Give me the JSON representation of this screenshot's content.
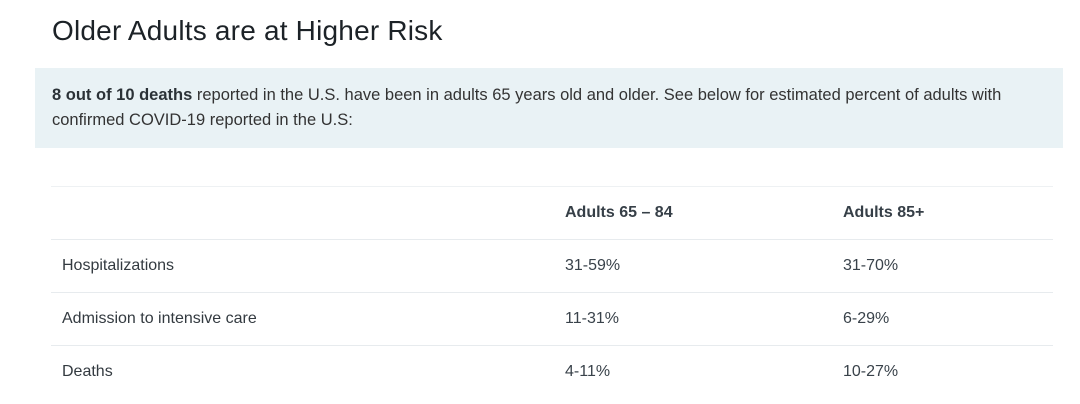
{
  "page": {
    "title": "Older Adults are at Higher Risk"
  },
  "callout": {
    "bold_text": "8 out of 10 deaths",
    "text_after_bold": " reported in the U.S. have been in adults 65 years old and older. See below for estimated percent of adults with confirmed COVID-19 reported in the U.S:",
    "background_color": "#e9f2f5"
  },
  "table": {
    "columns": [
      "",
      "Adults 65 – 84",
      "Adults 85+"
    ],
    "rows": [
      {
        "label": "Hospitalizations",
        "values": [
          "31-59%",
          "31-70%"
        ]
      },
      {
        "label": "Admission to intensive care",
        "values": [
          "11-31%",
          "6-29%"
        ]
      },
      {
        "label": "Deaths",
        "values": [
          "4-11%",
          "10-27%"
        ]
      }
    ]
  },
  "colors": {
    "title_text": "#1c2227",
    "body_text": "#333333",
    "callout_background": "#e9f2f5",
    "table_border": "#e7ebee"
  }
}
